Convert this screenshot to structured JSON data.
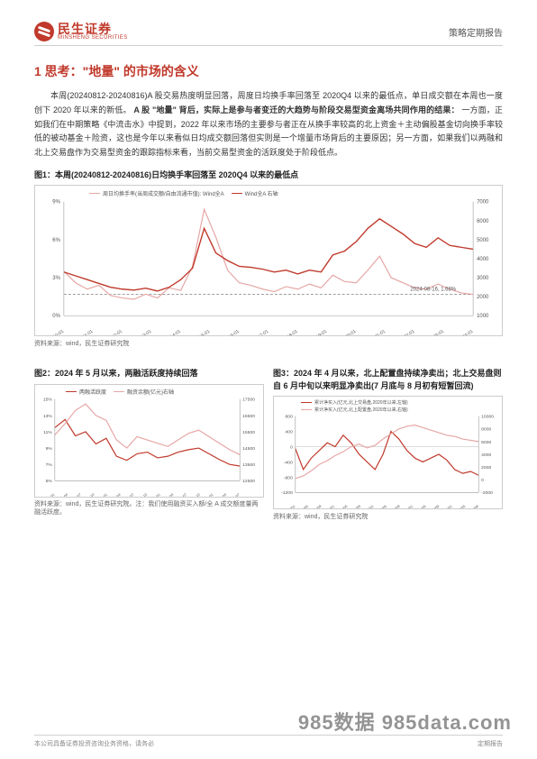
{
  "header": {
    "brand_cn": "民生证券",
    "brand_en": "MINSHENG SECURITIES",
    "doc_type": "策略定期报告"
  },
  "section_title": "1 思考：\"地量\" 的市场的含义",
  "paragraph_parts": {
    "p1": "本周(20240812-20240816)A 股交易热度明显回落，周度日均换手率回落至 2020Q4 以来的最低点，单日成交额在本周也一度创下 2020 年以来的新低。",
    "bold": "A 股 \"地量\" 背后，实际上是参与者变迁的大趋势与阶段交易型资金离场共同作用的结果：",
    "p2": "一方面，正如我们在中期策略《中流击水》中提到，2022 年以来市场的主要参与者正在从换手率较高的北上资金＋主动偏股基金切向换手率较低的被动基金＋险资，这也是今年以来看似日均成交额回落但实则是一个增量市场背后的主要原因；另一方面，如果我们以两融和北上交易盘作为交易型资金的跟踪指标来看，当前交易型资金的活跃度处于阶段低点。"
  },
  "charts": {
    "fig1": {
      "title": "图1：本周(20240812-20240816)日均换手率回落至 2020Q4 以来的最低点",
      "source": "资料来源：wind，民生证券研究院",
      "type": "line-dual-axis",
      "legend": [
        {
          "label": "周日均换手率(当周成交额/自由流通市值): Wind全A",
          "color": "#e6a6a6"
        },
        {
          "label": "Wind全A 右轴",
          "color": "#c0392b"
        }
      ],
      "left_axis": {
        "ticks": [
          "0%",
          "3%",
          "6%",
          "9%"
        ],
        "min": 0,
        "max": 9
      },
      "right_axis": {
        "ticks": [
          "1000",
          "2000",
          "3000",
          "4000",
          "5000",
          "6000",
          "7000"
        ],
        "min": 1000,
        "max": 7000
      },
      "x_ticks": [
        "2010-01",
        "2011-01",
        "2012-01",
        "2013-01",
        "2014-01",
        "2015-01",
        "2016-01",
        "2017-01",
        "2018-01",
        "2019-01",
        "2020-01",
        "2021-01",
        "2022-01",
        "2023-01",
        "2024-01"
      ],
      "callout": "2024-08-16, 1.68%",
      "hline_value": 1.68,
      "series_pink_color": "#e6a6a6",
      "series_red_color": "#c0392b",
      "series_pink": [
        3.5,
        2.6,
        2.1,
        2.4,
        1.6,
        1.4,
        1.3,
        1.7,
        1.4,
        2.2,
        2.0,
        3.9,
        8.4,
        6.2,
        3.6,
        2.6,
        2.4,
        2.1,
        1.9,
        2.3,
        2.1,
        2.5,
        2.2,
        3.2,
        2.7,
        2.6,
        3.6,
        4.7,
        3.0,
        2.6,
        2.2,
        2.1,
        2.5,
        2.1,
        1.8,
        1.68
      ],
      "series_red": [
        3300,
        3100,
        2900,
        2700,
        2500,
        2400,
        2350,
        2450,
        2300,
        2500,
        2900,
        3500,
        5600,
        4300,
        3900,
        3600,
        3550,
        3450,
        3300,
        3400,
        3200,
        3400,
        3300,
        4200,
        4400,
        4900,
        5600,
        6100,
        5700,
        5300,
        4800,
        4600,
        5100,
        4700,
        4600,
        4500
      ]
    },
    "fig2": {
      "title": "图2：2024 年 5 月以来，两融活跃度持续回落",
      "source": "资料来源：wind，民生证券研究院。注：我们使用融资买入额/全 A 成交额度量两融活跃度。",
      "type": "line-dual-axis",
      "legend": [
        {
          "label": "两融活跃度",
          "color": "#c0392b"
        },
        {
          "label": "融资余额(亿元)右轴",
          "color": "#e6a6a6"
        }
      ],
      "left_axis": {
        "ticks": [
          "5%",
          "7%",
          "9%",
          "11%",
          "13%",
          "15%"
        ],
        "min": 5,
        "max": 15
      },
      "right_axis": {
        "ticks": [
          "12500",
          "13500",
          "14500",
          "15500",
          "16500",
          "17500"
        ],
        "min": 12500,
        "max": 17500
      },
      "x_ticks": [
        "2021-01",
        "2021-04",
        "2021-07",
        "2021-10",
        "2022-01",
        "2022-04",
        "2022-07",
        "2022-10",
        "2023-01",
        "2023-04",
        "2023-07",
        "2023-10",
        "2024-01",
        "2024-04",
        "2024-07"
      ],
      "series_act_color": "#c0392b",
      "series_bal_color": "#e6a6a6",
      "series_act": [
        11.5,
        12.5,
        10.5,
        11.0,
        9.5,
        10.2,
        8.0,
        7.5,
        8.3,
        8.5,
        7.8,
        8.0,
        8.5,
        8.8,
        9.0,
        8.3,
        7.6,
        7.0,
        6.8
      ],
      "series_bal": [
        15300,
        16000,
        16800,
        17200,
        16500,
        16200,
        15000,
        14500,
        15200,
        15000,
        14800,
        14600,
        15000,
        15400,
        15600,
        15200,
        14800,
        14400,
        14100
      ]
    },
    "fig3": {
      "title": "图3：2024 年 4 月以来，北上配置盘持续净卖出；北上交易盘则自 6 月中旬以来明显净卖出(7 月底与 8 月初有短暂回流)",
      "source": "资料来源：wind，民生证券研究院",
      "type": "line-dual-axis",
      "legend": [
        {
          "label": "累计净买入(亿元,北上交易盘,2020年以来,左轴)",
          "color": "#c0392b"
        },
        {
          "label": "累计净买入(亿元,北上配置盘,2020年以来,右轴)",
          "color": "#e6a6a6"
        }
      ],
      "left_axis": {
        "ticks": [
          "-1200",
          "-800",
          "-400",
          "0",
          "400",
          "800"
        ],
        "min": -1200,
        "max": 800
      },
      "right_axis": {
        "ticks": [
          "-2000",
          "0",
          "2000",
          "4000",
          "6000",
          "8000",
          "10000"
        ],
        "min": -2000,
        "max": 10000
      },
      "x_ticks": [
        "2020/01",
        "2020/05",
        "2020/09",
        "2021/01",
        "2021/05",
        "2021/09",
        "2022/01",
        "2022/05",
        "2022/09",
        "2023/01",
        "2023/05",
        "2023/09",
        "2024/01",
        "2024/05",
        "2024/08"
      ],
      "series_trade_color": "#c0392b",
      "series_alloc_color": "#e6a6a6",
      "series_trade": [
        -50,
        -600,
        -300,
        -100,
        100,
        0,
        300,
        100,
        -200,
        -400,
        -600,
        -200,
        400,
        200,
        -100,
        -300,
        -400,
        -300,
        -200,
        -350,
        -600,
        -700,
        -650,
        -750
      ],
      "series_alloc": [
        200,
        600,
        1400,
        2400,
        3000,
        3800,
        4400,
        5200,
        5600,
        5000,
        5400,
        6400,
        7200,
        8000,
        8400,
        8600,
        8200,
        7800,
        7400,
        7000,
        6800,
        6400,
        6200,
        6000
      ]
    }
  },
  "watermark": "985数据 985data.com",
  "footer_left": "本公司具备证券投资咨询业务资格，请务必",
  "footer_right": "定期报告"
}
